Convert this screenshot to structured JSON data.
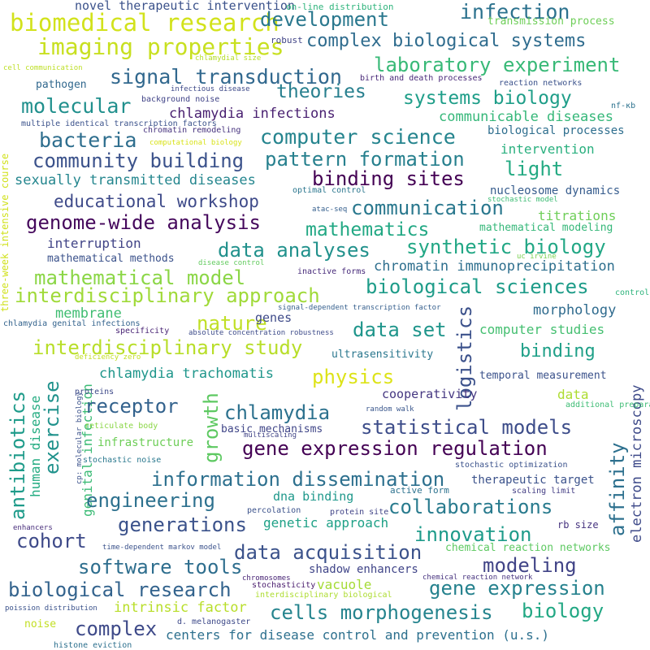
{
  "words": [
    {
      "text": "biomedical research",
      "color": "#d2e21b"
    },
    {
      "text": "imaging properties",
      "color": "#c8e020"
    },
    {
      "text": "development",
      "color": "#2a788e"
    },
    {
      "text": "infection",
      "color": "#2c728e"
    },
    {
      "text": "complex biological systems",
      "color": "#2f6c8e"
    },
    {
      "text": "novel therapeutic intervention",
      "color": "#3b528b"
    },
    {
      "text": "on-line distribution",
      "color": "#2fb47c"
    },
    {
      "text": "transmission process",
      "color": "#6ece58"
    },
    {
      "text": "robust",
      "color": "#414487"
    },
    {
      "text": "chlamydial size",
      "color": "#b5de2b"
    },
    {
      "text": "laboratory experiment",
      "color": "#38b977"
    },
    {
      "text": "signal transduction",
      "color": "#31688e"
    },
    {
      "text": "theories",
      "color": "#277f8e"
    },
    {
      "text": "systems biology",
      "color": "#1f9e89"
    },
    {
      "text": "molecular",
      "color": "#21908d"
    },
    {
      "text": "cell communication",
      "color": "#bddf26"
    },
    {
      "text": "pathogen",
      "color": "#31688e"
    },
    {
      "text": "infectious disease",
      "color": "#3e4a89"
    },
    {
      "text": "birth and death processes",
      "color": "#482878"
    },
    {
      "text": "reaction networks",
      "color": "#3b528b"
    },
    {
      "text": "background noise",
      "color": "#404387"
    },
    {
      "text": "chlamydia infections",
      "color": "#481f70"
    },
    {
      "text": "communicable diseases",
      "color": "#35b779"
    },
    {
      "text": "nf-κb",
      "color": "#2c728e"
    },
    {
      "text": "multiple identical transcription factors",
      "color": "#3b528b"
    },
    {
      "text": "chromatin remodeling",
      "color": "#46327e"
    },
    {
      "text": "computational biology",
      "color": "#d8e219"
    },
    {
      "text": "biological processes",
      "color": "#2e6e8e"
    },
    {
      "text": "computer science",
      "color": "#25848e"
    },
    {
      "text": "bacteria",
      "color": "#2e6e8e"
    },
    {
      "text": "intervention",
      "color": "#2ab07f"
    },
    {
      "text": "community building",
      "color": "#3b528b"
    },
    {
      "text": "pattern formation",
      "color": "#27808e"
    },
    {
      "text": "light",
      "color": "#24aa83"
    },
    {
      "text": "binding sites",
      "color": "#440154"
    },
    {
      "text": "sexually transmitted diseases",
      "color": "#24868e"
    },
    {
      "text": "optimal control",
      "color": "#2a768e"
    },
    {
      "text": "nucleosome dynamics",
      "color": "#365c8d"
    },
    {
      "text": "stochastic model",
      "color": "#3dbc74"
    },
    {
      "text": "educational workshop",
      "color": "#3e4a89"
    },
    {
      "text": "communication",
      "color": "#2a788e"
    },
    {
      "text": "atac-seq",
      "color": "#355f8d"
    },
    {
      "text": "genome-wide analysis",
      "color": "#45085c"
    },
    {
      "text": "mathematics",
      "color": "#22a884"
    },
    {
      "text": "titrations",
      "color": "#6ece58"
    },
    {
      "text": "mathematical modeling",
      "color": "#35b779"
    },
    {
      "text": "interruption",
      "color": "#414487"
    },
    {
      "text": "data analyses",
      "color": "#21918c"
    },
    {
      "text": "synthetic biology",
      "color": "#22a785"
    },
    {
      "text": "mathematical methods",
      "color": "#3b528b"
    },
    {
      "text": "disease control",
      "color": "#63cb5f"
    },
    {
      "text": "uc irvine",
      "color": "#7ad151"
    },
    {
      "text": "chromatin immunoprecipitation",
      "color": "#2e6f8e"
    },
    {
      "text": "mathematical model",
      "color": "#8bd646"
    },
    {
      "text": "inactive forms",
      "color": "#472a7a"
    },
    {
      "text": "biological sciences",
      "color": "#1e9c89"
    },
    {
      "text": "interdisciplinary approach",
      "color": "#a0da39"
    },
    {
      "text": "three-week intensive course",
      "color": "#d0e11c"
    },
    {
      "text": "control",
      "color": "#2fb47c"
    },
    {
      "text": "membrane",
      "color": "#40bd72"
    },
    {
      "text": "nature",
      "color": "#c0df25"
    },
    {
      "text": "genes",
      "color": "#3e4a89"
    },
    {
      "text": "signal-dependent transcription factor",
      "color": "#355f8d"
    },
    {
      "text": "logistics",
      "color": "#3b518b"
    },
    {
      "text": "morphology",
      "color": "#2f6b8e"
    },
    {
      "text": "chlamydia genital infections",
      "color": "#33638d"
    },
    {
      "text": "data set",
      "color": "#1f958b"
    },
    {
      "text": "computer studies",
      "color": "#44bf70"
    },
    {
      "text": "specificity",
      "color": "#482374"
    },
    {
      "text": "absolute concentration robustness",
      "color": "#3e4c8a"
    },
    {
      "text": "interdisciplinary study",
      "color": "#b8de29"
    },
    {
      "text": "ultrasensitivity",
      "color": "#2a778e"
    },
    {
      "text": "binding",
      "color": "#1fa088"
    },
    {
      "text": "deficiency zero",
      "color": "#c2df23"
    },
    {
      "text": "physics",
      "color": "#dde318"
    },
    {
      "text": "chlamydia trachomatis",
      "color": "#1f968b"
    },
    {
      "text": "temporal measurement",
      "color": "#3b528b"
    },
    {
      "text": "electron microscopy",
      "color": "#3e4a89"
    },
    {
      "text": "antibiotics",
      "color": "#1e9b8a"
    },
    {
      "text": "human disease",
      "color": "#25ac82"
    },
    {
      "text": "genital infection",
      "color": "#3bbb75"
    },
    {
      "text": "exercise",
      "color": "#20928c"
    },
    {
      "text": "proteins",
      "color": "#3e4a89"
    },
    {
      "text": "receptor",
      "color": "#33628d"
    },
    {
      "text": "growth",
      "color": "#5ec962"
    },
    {
      "text": "chlamydia",
      "color": "#2c718e"
    },
    {
      "text": "cooperativity",
      "color": "#453781"
    },
    {
      "text": "data",
      "color": "#addc30"
    },
    {
      "text": "additional preparation",
      "color": "#3dbc74"
    },
    {
      "text": "affinity",
      "color": "#2d708e"
    },
    {
      "text": "random walk",
      "color": "#39568c"
    },
    {
      "text": "statistical models",
      "color": "#3d4d8a"
    },
    {
      "text": "reticulate body",
      "color": "#8bd646"
    },
    {
      "text": "basic mechanisms",
      "color": "#404688"
    },
    {
      "text": "cp: molecular biology",
      "color": "#3b528b"
    },
    {
      "text": "multiscaling",
      "color": "#414487"
    },
    {
      "text": "gene expression regulation",
      "color": "#440154"
    },
    {
      "text": "infrastructure",
      "color": "#6ece58"
    },
    {
      "text": "stochastic noise",
      "color": "#2a788e"
    },
    {
      "text": "information dissemination",
      "color": "#2d708e"
    },
    {
      "text": "stochastic optimization",
      "color": "#3b528b"
    },
    {
      "text": "therapeutic target",
      "color": "#3b528b"
    },
    {
      "text": "engineering",
      "color": "#2d718e"
    },
    {
      "text": "dna binding",
      "color": "#1f988b"
    },
    {
      "text": "active form",
      "color": "#2c728e"
    },
    {
      "text": "scaling limit",
      "color": "#433d84"
    },
    {
      "text": "percolation",
      "color": "#3b528b"
    },
    {
      "text": "protein site",
      "color": "#414487"
    },
    {
      "text": "collaborations",
      "color": "#297b8e"
    },
    {
      "text": "generations",
      "color": "#3b528b"
    },
    {
      "text": "genetic approach",
      "color": "#1fa187"
    },
    {
      "text": "cohort",
      "color": "#3e4a89"
    },
    {
      "text": "innovation",
      "color": "#1e9b8a"
    },
    {
      "text": "rb size",
      "color": "#46337f"
    },
    {
      "text": "enhancers",
      "color": "#472d7b"
    },
    {
      "text": "time-dependent markov model",
      "color": "#3b528b"
    },
    {
      "text": "chemical reaction networks",
      "color": "#5ec962"
    },
    {
      "text": "data acquisition",
      "color": "#3b528b"
    },
    {
      "text": "software tools",
      "color": "#2e6e8e"
    },
    {
      "text": "modeling",
      "color": "#414487"
    },
    {
      "text": "shadow enhancers",
      "color": "#404588"
    },
    {
      "text": "chromosomes",
      "color": "#482475"
    },
    {
      "text": "stochasticity",
      "color": "#481a6c"
    },
    {
      "text": "chemical reaction network",
      "color": "#46327e"
    },
    {
      "text": "vacuole",
      "color": "#a5db36"
    },
    {
      "text": "biological research",
      "color": "#33638d"
    },
    {
      "text": "gene expression",
      "color": "#26828e"
    },
    {
      "text": "interdisciplinary biological",
      "color": "#addc30"
    },
    {
      "text": "intrinsic factor",
      "color": "#b8de29"
    },
    {
      "text": "cells morphogenesis",
      "color": "#25848e"
    },
    {
      "text": "biology",
      "color": "#22a884"
    },
    {
      "text": "poission distribution",
      "color": "#3b528b"
    },
    {
      "text": "noise",
      "color": "#c2df23"
    },
    {
      "text": "complex",
      "color": "#3e4a89"
    },
    {
      "text": "d. melanogaster",
      "color": "#3e4a89"
    },
    {
      "text": "centers for disease control and prevention (u.s.)",
      "color": "#2d708e"
    },
    {
      "text": "histone eviction",
      "color": "#2d708e"
    }
  ]
}
